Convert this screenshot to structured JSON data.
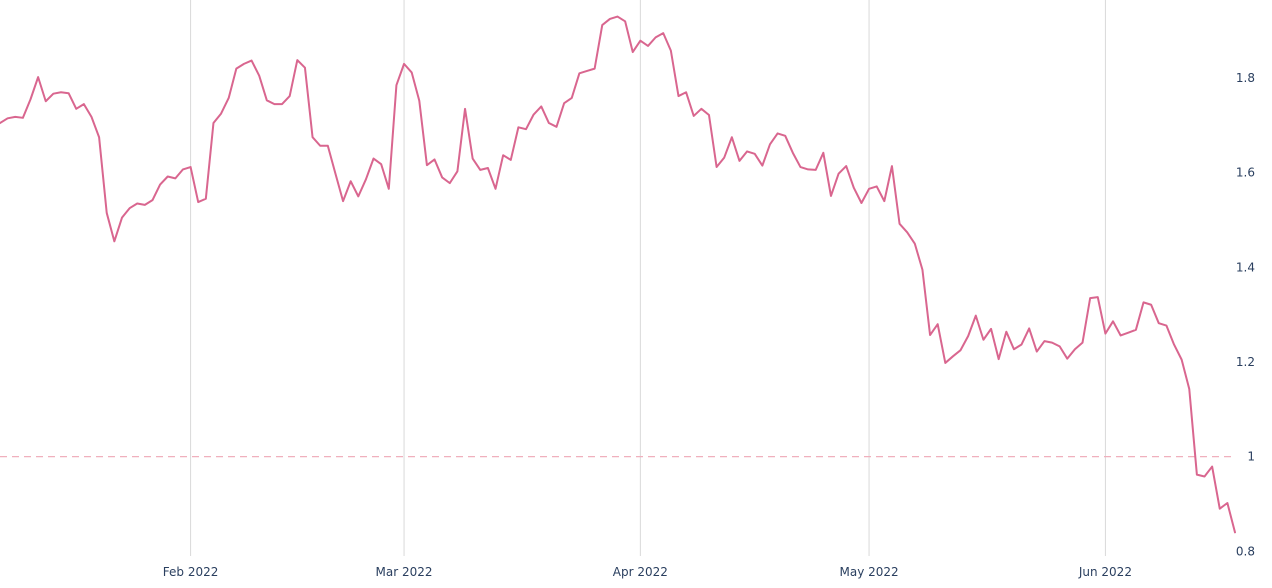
{
  "chart_data": {
    "type": "line",
    "title": "",
    "xlabel": "",
    "ylabel": "",
    "x_range": [
      "2022-01-07",
      "2022-06-18"
    ],
    "ylim": [
      0.79,
      1.965
    ],
    "grid": {
      "x": true,
      "y": false
    },
    "y_axis_side": "right",
    "legend": "none",
    "x_ticks": [
      {
        "date": "2022-02-01",
        "label": "Feb 2022"
      },
      {
        "date": "2022-03-01",
        "label": "Mar 2022"
      },
      {
        "date": "2022-04-01",
        "label": "Apr 2022"
      },
      {
        "date": "2022-05-01",
        "label": "May 2022"
      },
      {
        "date": "2022-06-01",
        "label": "Jun 2022"
      }
    ],
    "y_ticks": [
      {
        "value": 0.8,
        "label": "0.8"
      },
      {
        "value": 1.0,
        "label": "1"
      },
      {
        "value": 1.2,
        "label": "1.2"
      },
      {
        "value": 1.4,
        "label": "1.4"
      },
      {
        "value": 1.6,
        "label": "1.6"
      },
      {
        "value": 1.8,
        "label": "1.8"
      }
    ],
    "reference_line": {
      "y": 1.0,
      "style": "dashed",
      "color": "#f0b0bd"
    },
    "series": [
      {
        "color": "#d9668f",
        "x": [
          "2022-01-07",
          "2022-01-08",
          "2022-01-09",
          "2022-01-10",
          "2022-01-11",
          "2022-01-12",
          "2022-01-13",
          "2022-01-14",
          "2022-01-15",
          "2022-01-16",
          "2022-01-17",
          "2022-01-18",
          "2022-01-19",
          "2022-01-20",
          "2022-01-21",
          "2022-01-22",
          "2022-01-23",
          "2022-01-24",
          "2022-01-25",
          "2022-01-26",
          "2022-01-27",
          "2022-01-28",
          "2022-01-29",
          "2022-01-30",
          "2022-01-31",
          "2022-02-01",
          "2022-02-02",
          "2022-02-03",
          "2022-02-04",
          "2022-02-05",
          "2022-02-06",
          "2022-02-07",
          "2022-02-08",
          "2022-02-09",
          "2022-02-10",
          "2022-02-11",
          "2022-02-12",
          "2022-02-13",
          "2022-02-14",
          "2022-02-15",
          "2022-02-16",
          "2022-02-17",
          "2022-02-18",
          "2022-02-19",
          "2022-02-20",
          "2022-02-21",
          "2022-02-22",
          "2022-02-23",
          "2022-02-24",
          "2022-02-25",
          "2022-02-26",
          "2022-02-27",
          "2022-02-28",
          "2022-03-01",
          "2022-03-02",
          "2022-03-03",
          "2022-03-04",
          "2022-03-05",
          "2022-03-06",
          "2022-03-07",
          "2022-03-08",
          "2022-03-09",
          "2022-03-10",
          "2022-03-11",
          "2022-03-12",
          "2022-03-13",
          "2022-03-14",
          "2022-03-15",
          "2022-03-16",
          "2022-03-17",
          "2022-03-18",
          "2022-03-19",
          "2022-03-20",
          "2022-03-21",
          "2022-03-22",
          "2022-03-23",
          "2022-03-24",
          "2022-03-25",
          "2022-03-26",
          "2022-03-27",
          "2022-03-28",
          "2022-03-29",
          "2022-03-30",
          "2022-03-31",
          "2022-04-01",
          "2022-04-02",
          "2022-04-03",
          "2022-04-04",
          "2022-04-05",
          "2022-04-06",
          "2022-04-07",
          "2022-04-08",
          "2022-04-09",
          "2022-04-10",
          "2022-04-11",
          "2022-04-12",
          "2022-04-13",
          "2022-04-14",
          "2022-04-15",
          "2022-04-16",
          "2022-04-17",
          "2022-04-18",
          "2022-04-19",
          "2022-04-20",
          "2022-04-21",
          "2022-04-22",
          "2022-04-23",
          "2022-04-24",
          "2022-04-25",
          "2022-04-26",
          "2022-04-27",
          "2022-04-28",
          "2022-04-29",
          "2022-04-30",
          "2022-05-01",
          "2022-05-02",
          "2022-05-03",
          "2022-05-04",
          "2022-05-05",
          "2022-05-06",
          "2022-05-07",
          "2022-05-08",
          "2022-05-09",
          "2022-05-10",
          "2022-05-11",
          "2022-05-12",
          "2022-05-13",
          "2022-05-14",
          "2022-05-15",
          "2022-05-16",
          "2022-05-17",
          "2022-05-18",
          "2022-05-19",
          "2022-05-20",
          "2022-05-21",
          "2022-05-22",
          "2022-05-23",
          "2022-05-24",
          "2022-05-25",
          "2022-05-26",
          "2022-05-27",
          "2022-05-28",
          "2022-05-29",
          "2022-05-30",
          "2022-05-31",
          "2022-06-01",
          "2022-06-02",
          "2022-06-03",
          "2022-06-04",
          "2022-06-05",
          "2022-06-06",
          "2022-06-07",
          "2022-06-08",
          "2022-06-09",
          "2022-06-10",
          "2022-06-11",
          "2022-06-12",
          "2022-06-13",
          "2022-06-14",
          "2022-06-15",
          "2022-06-16",
          "2022-06-17",
          "2022-06-18"
        ],
        "values": [
          1.705,
          1.715,
          1.718,
          1.716,
          1.755,
          1.802,
          1.751,
          1.767,
          1.77,
          1.768,
          1.735,
          1.745,
          1.718,
          1.675,
          1.515,
          1.455,
          1.505,
          1.525,
          1.535,
          1.532,
          1.542,
          1.575,
          1.592,
          1.588,
          1.607,
          1.612,
          1.538,
          1.545,
          1.705,
          1.725,
          1.758,
          1.82,
          1.83,
          1.837,
          1.805,
          1.753,
          1.745,
          1.745,
          1.762,
          1.838,
          1.822,
          1.675,
          1.657,
          1.657,
          1.598,
          1.54,
          1.582,
          1.55,
          1.586,
          1.63,
          1.618,
          1.566,
          1.785,
          1.83,
          1.812,
          1.752,
          1.616,
          1.628,
          1.59,
          1.578,
          1.603,
          1.735,
          1.63,
          1.606,
          1.61,
          1.566,
          1.637,
          1.627,
          1.696,
          1.692,
          1.723,
          1.74,
          1.705,
          1.697,
          1.747,
          1.758,
          1.81,
          1.815,
          1.82,
          1.912,
          1.925,
          1.93,
          1.92,
          1.855,
          1.879,
          1.868,
          1.886,
          1.895,
          1.858,
          1.762,
          1.77,
          1.72,
          1.735,
          1.722,
          1.612,
          1.632,
          1.675,
          1.625,
          1.645,
          1.64,
          1.615,
          1.66,
          1.683,
          1.678,
          1.642,
          1.612,
          1.607,
          1.606,
          1.642,
          1.551,
          1.598,
          1.614,
          1.568,
          1.536,
          1.566,
          1.571,
          1.54,
          1.614,
          1.492,
          1.474,
          1.45,
          1.395,
          1.257,
          1.28,
          1.198,
          1.212,
          1.225,
          1.255,
          1.298,
          1.247,
          1.27,
          1.206,
          1.264,
          1.227,
          1.237,
          1.271,
          1.222,
          1.244,
          1.241,
          1.233,
          1.207,
          1.227,
          1.241,
          1.335,
          1.337,
          1.26,
          1.286,
          1.256,
          1.262,
          1.268,
          1.326,
          1.321,
          1.282,
          1.277,
          1.237,
          1.205,
          1.143,
          0.962,
          0.958,
          0.979,
          0.89,
          0.902,
          0.84
        ]
      }
    ]
  }
}
